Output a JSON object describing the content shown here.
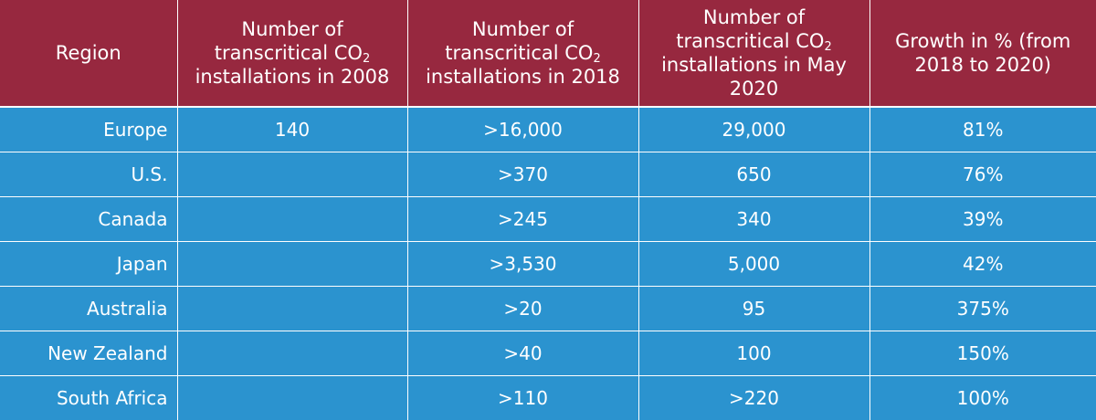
{
  "chart_data": {
    "type": "table",
    "columns": [
      "Region",
      "Number of transcritical CO2 installations in 2008",
      "Number of transcritical CO2 installations in 2018",
      "Number of transcritical CO2 installations in May 2020",
      "Growth in % (from 2018 to 2020)"
    ],
    "rows": [
      [
        "Europe",
        "140",
        ">16,000",
        "29,000",
        "81%"
      ],
      [
        "U.S.",
        "",
        ">370",
        "650",
        "76%"
      ],
      [
        "Canada",
        "",
        ">245",
        "340",
        "39%"
      ],
      [
        "Japan",
        "",
        ">3,530",
        "5,000",
        "42%"
      ],
      [
        "Australia",
        "",
        ">20",
        "95",
        "375%"
      ],
      [
        "New Zealand",
        "",
        ">40",
        "100",
        "150%"
      ],
      [
        "South Africa",
        "",
        ">110",
        ">220",
        "100%"
      ]
    ]
  },
  "header": {
    "region": "Region",
    "col2008_pre": "Number of transcritical CO",
    "col2008_sub": "2",
    "col2008_post": "installations in 2008",
    "col2018_pre": "Number of transcritical CO",
    "col2018_sub": "2",
    "col2018_post": "installations in 2018",
    "col2020_pre": "Number of transcritical CO",
    "col2020_sub": "2",
    "col2020_post": "installations in May 2020",
    "growth": "Growth in % (from 2018 to 2020)"
  },
  "colors": {
    "header_bg": "#97283f",
    "body_bg": "#2b93cf",
    "text": "#ffffff",
    "grid": "#ffffff"
  }
}
